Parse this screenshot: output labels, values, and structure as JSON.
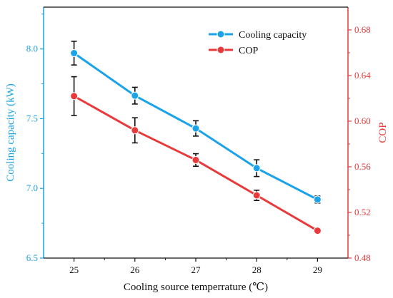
{
  "chart_data": {
    "type": "line",
    "x": [
      25,
      26,
      27,
      28,
      29
    ],
    "xlabel": "Cooling source temperrature (℃)",
    "xlim": [
      24.5,
      29.5
    ],
    "x_ticks": [
      "25",
      "26",
      "27",
      "28",
      "29"
    ],
    "ylabel_left": "Cooling capacity (kW)",
    "ylim_left": [
      6.5,
      8.3
    ],
    "y_ticks_left": [
      "6.5",
      "7.0",
      "7.5",
      "8.0"
    ],
    "ylabel_right": "COP",
    "ylim_right": [
      0.48,
      0.7
    ],
    "y_ticks_right": [
      "0.48",
      "0.52",
      "0.56",
      "0.60",
      "0.64",
      "0.68"
    ],
    "legend_position": "top-right",
    "grid": false,
    "series": [
      {
        "name": "Cooling capacity",
        "axis": "left",
        "color": "#1aa3e8",
        "values": [
          7.97,
          7.665,
          7.43,
          7.145,
          6.92
        ],
        "errors": [
          0.085,
          0.06,
          0.055,
          0.06,
          0.025
        ]
      },
      {
        "name": "COP",
        "axis": "right",
        "color": "#e83a3a",
        "values": [
          0.622,
          0.592,
          0.566,
          0.535,
          0.504
        ],
        "errors": [
          0.017,
          0.011,
          0.0055,
          0.0045,
          0.002
        ]
      }
    ]
  }
}
